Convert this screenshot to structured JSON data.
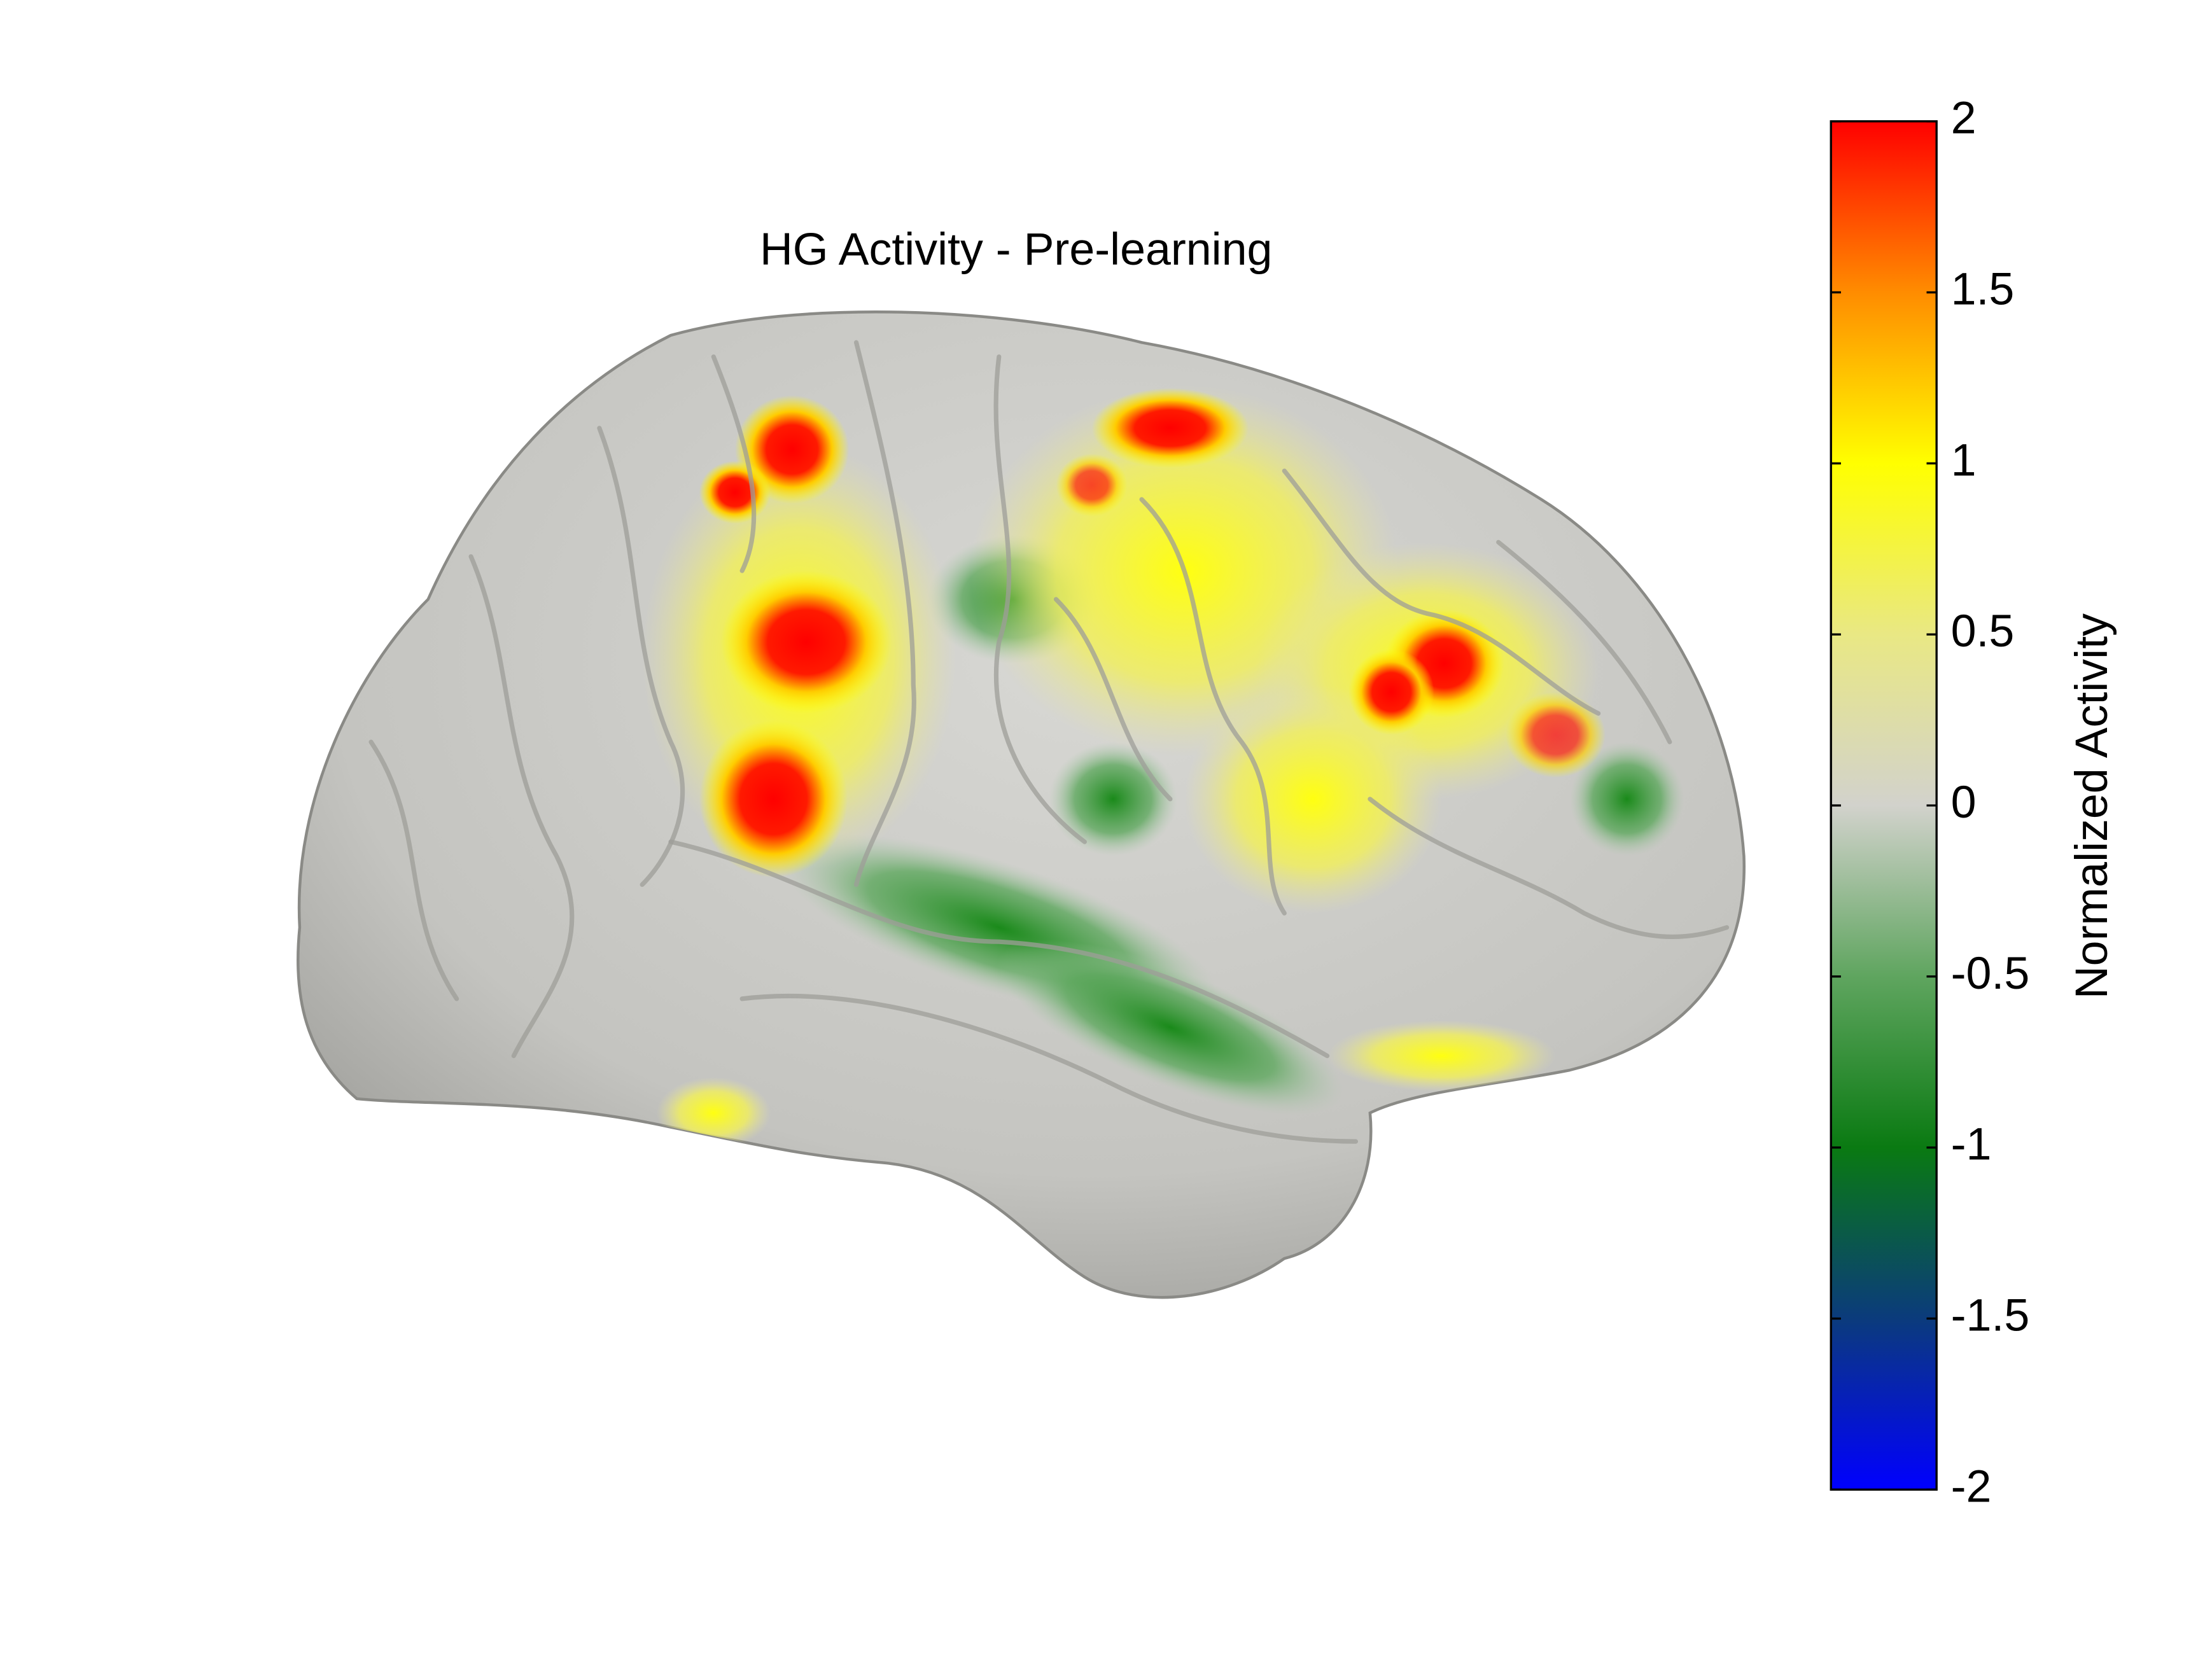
{
  "chart_data": {
    "type": "brain-surface",
    "title": "HG Activity - Pre-learning",
    "colorbar_label": "Normalized Activity",
    "clim": [
      -2,
      2
    ],
    "cticks": [
      -2,
      -1.5,
      -1,
      -0.5,
      0,
      0.5,
      1,
      1.5,
      2
    ],
    "colormap": [
      "#0000ff",
      "#0b3b7c",
      "#0a7a12",
      "#5fa55f",
      "#d2d2cc",
      "#e9e884",
      "#ffff00",
      "#ff8c00",
      "#ff0000"
    ]
  }
}
